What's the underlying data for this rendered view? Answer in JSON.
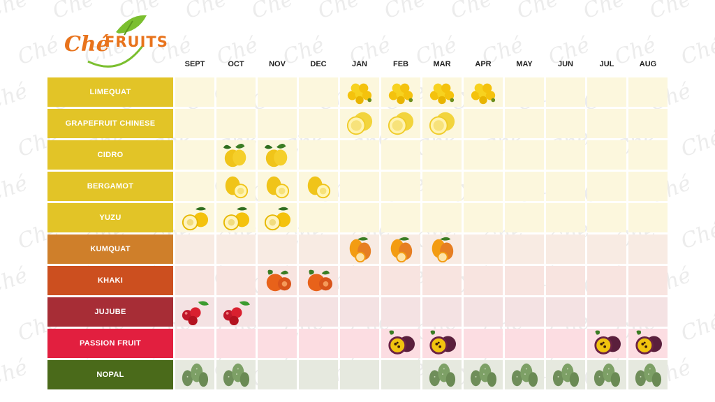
{
  "brand": {
    "name_part1": "Ché",
    "name_part2": "FRUITS"
  },
  "watermark": "Ché",
  "months": [
    "SEPT",
    "OCT",
    "NOV",
    "DEC",
    "JAN",
    "FEB",
    "MAR",
    "APR",
    "MAY",
    "JUN",
    "JUL",
    "AUG"
  ],
  "rows": [
    {
      "label": "LIMEQUAT",
      "color": "#e2c427",
      "bg": "#fcf7dd",
      "fruit": "limequat-icon",
      "months": [
        4,
        5,
        6,
        7
      ]
    },
    {
      "label": "GRAPEFRUIT CHINESE",
      "color": "#e2c427",
      "bg": "#fcf7dd",
      "fruit": "grapefruit-icon",
      "months": [
        4,
        5,
        6
      ]
    },
    {
      "label": "CIDRO",
      "color": "#e2c427",
      "bg": "#fcf7dd",
      "fruit": "cidro-icon",
      "months": [
        1,
        2
      ]
    },
    {
      "label": "BERGAMOT",
      "color": "#e2c427",
      "bg": "#fcf7dd",
      "fruit": "bergamot-icon",
      "months": [
        1,
        2,
        3
      ]
    },
    {
      "label": "YUZU",
      "color": "#e2c427",
      "bg": "#fcf7dd",
      "fruit": "yuzu-icon",
      "months": [
        0,
        1,
        2
      ]
    },
    {
      "label": "KUMQUAT",
      "color": "#cf7f2a",
      "bg": "#f8ebe3",
      "fruit": "kumquat-icon",
      "months": [
        4,
        5,
        6
      ]
    },
    {
      "label": "KHAKI",
      "color": "#cc4f1f",
      "bg": "#f8e4e0",
      "fruit": "khaki-icon",
      "months": [
        2,
        3
      ]
    },
    {
      "label": "JUJUBE",
      "color": "#a72d36",
      "bg": "#f4e2e3",
      "fruit": "jujube-icon",
      "months": [
        0,
        1
      ]
    },
    {
      "label": "PASSION FRUIT",
      "color": "#e21f3f",
      "bg": "#fcdde2",
      "fruit": "passion-fruit-icon",
      "months": [
        5,
        6,
        10,
        11
      ]
    },
    {
      "label": "NOPAL",
      "color": "#4a6a1a",
      "bg": "#e6e9df",
      "fruit": "nopal-icon",
      "months": [
        0,
        1,
        6,
        7,
        8,
        9,
        10,
        11
      ]
    }
  ]
}
